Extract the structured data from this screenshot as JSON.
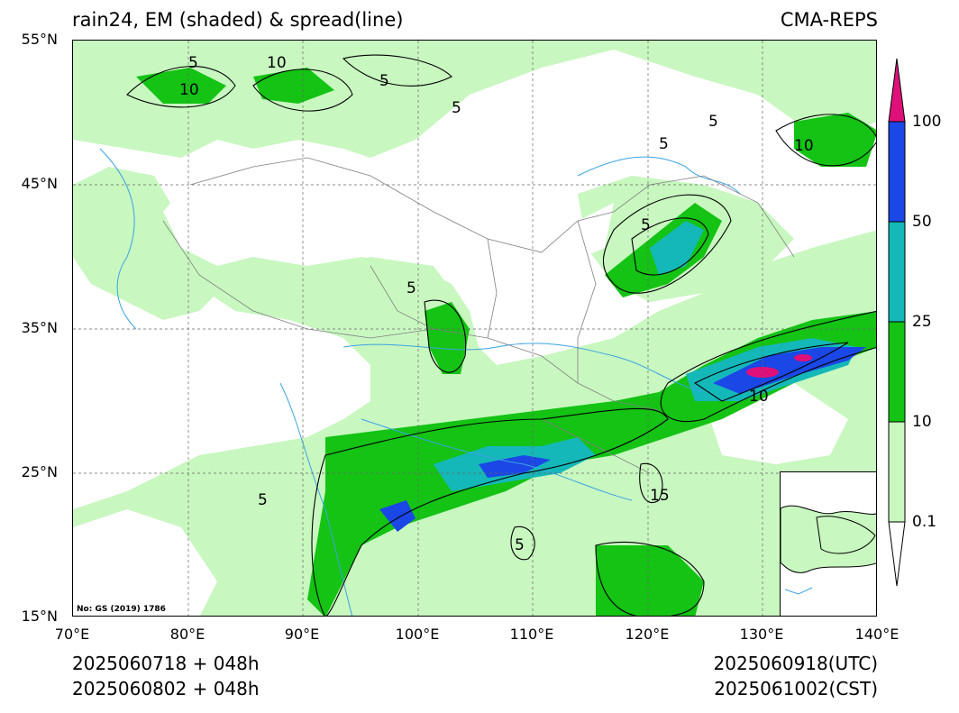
{
  "title_left": "rain24, EM (shaded) & spread(line)",
  "title_right": "CMA-REPS",
  "lat_labels": [
    "55°N",
    "45°N",
    "35°N",
    "25°N",
    "15°N"
  ],
  "lon_labels": [
    "70°E",
    "80°E",
    "90°E",
    "100°E",
    "110°E",
    "120°E",
    "130°E",
    "140°E"
  ],
  "colorbar": {
    "labels": [
      "100",
      "50",
      "25",
      "10",
      "0.1"
    ],
    "colors": [
      "#e0107a",
      "#1a47e6",
      "#14b8b8",
      "#14c314",
      "#c8f7c0",
      "#ffffff"
    ]
  },
  "contour_labels": [
    "5",
    "10",
    "10",
    "5",
    "5",
    "5",
    "10",
    "5",
    "5",
    "10",
    "5",
    "15",
    "5",
    "5"
  ],
  "map_note": "No: GS (2019) 1786",
  "init_utc": "2025060718  +  048h",
  "init_cst": "2025060802  +  048h",
  "valid_utc": "2025060918(UTC)",
  "valid_cst": "2025061002(CST)"
}
